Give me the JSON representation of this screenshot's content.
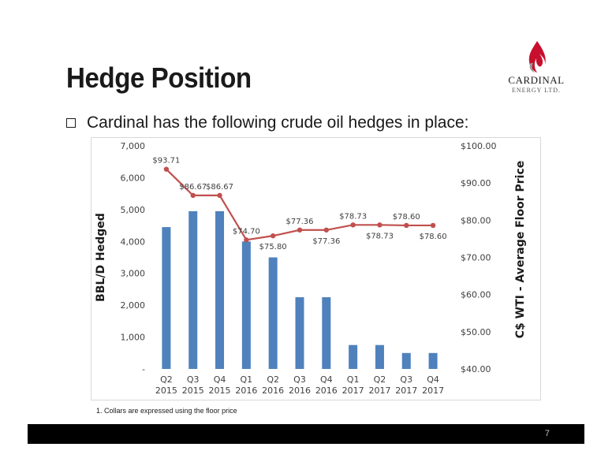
{
  "page": {
    "title": "Hedge Position",
    "bullet": "Cardinal has the following crude oil hedges in place:",
    "footnote": "1.    Collars are expressed using the floor price",
    "page_number": "7"
  },
  "logo": {
    "name": "CARDINAL",
    "sub": "ENERGY LTD."
  },
  "colors": {
    "bar": "#4f81bd",
    "line": "#c0504d",
    "axis_text": "#404040"
  },
  "chart_data": {
    "type": "bar",
    "categories": [
      [
        "Q2",
        "2015"
      ],
      [
        "Q3",
        "2015"
      ],
      [
        "Q4",
        "2015"
      ],
      [
        "Q1",
        "2016"
      ],
      [
        "Q2",
        "2016"
      ],
      [
        "Q3",
        "2016"
      ],
      [
        "Q4",
        "2016"
      ],
      [
        "Q1",
        "2017"
      ],
      [
        "Q2",
        "2017"
      ],
      [
        "Q3",
        "2017"
      ],
      [
        "Q4",
        "2017"
      ]
    ],
    "series": [
      {
        "type": "bar",
        "axis": "left",
        "values": [
          4450,
          4950,
          4950,
          4000,
          3500,
          2250,
          2250,
          750,
          750,
          500,
          500
        ]
      },
      {
        "type": "line",
        "axis": "right",
        "values": [
          93.71,
          86.67,
          86.67,
          74.7,
          75.8,
          77.36,
          77.36,
          78.73,
          78.73,
          78.6,
          78.6
        ],
        "labels": [
          "$93.71",
          "$86.67",
          "$86.67",
          "$74.70",
          "$75.80",
          "$77.36",
          "$77.36",
          "$78.73",
          "$78.73",
          "$78.60",
          "$78.60"
        ],
        "label_position": [
          "above",
          "above",
          "above",
          "above",
          "below",
          "above",
          "below",
          "above",
          "below",
          "above",
          "below"
        ]
      }
    ],
    "ylabel": "BBL/D Hedged",
    "y2label": "C$ WTI - Average Floor Price",
    "ylim": [
      0,
      7000
    ],
    "yticks": [
      "-",
      "1,000",
      "2,000",
      "3,000",
      "4,000",
      "5,000",
      "6,000",
      "7,000"
    ],
    "y2lim": [
      40,
      100
    ],
    "y2ticks": [
      "$40.00",
      "$50.00",
      "$60.00",
      "$70.00",
      "$80.00",
      "$90.00",
      "$100.00"
    ],
    "grid": false,
    "legend": "none"
  }
}
